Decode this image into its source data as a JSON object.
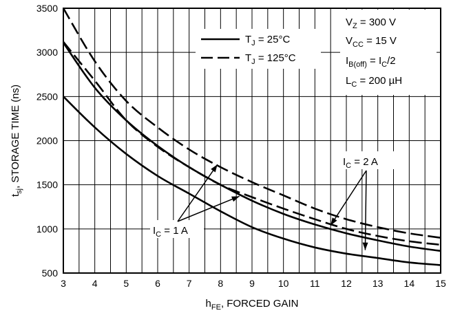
{
  "chart_data": {
    "type": "line",
    "title": "",
    "xlabel": {
      "main": "h",
      "sub": "FE",
      "rest": ", FORCED GAIN"
    },
    "ylabel": {
      "main": "t",
      "sub": "sj",
      "rest": ", STORAGE TIME (ns)"
    },
    "xlim": [
      3,
      15
    ],
    "ylim": [
      500,
      3500
    ],
    "xticks": [
      3,
      4,
      5,
      6,
      7,
      8,
      9,
      10,
      11,
      12,
      13,
      14,
      15
    ],
    "yticks": [
      500,
      1000,
      1500,
      2000,
      2500,
      3000,
      3500
    ],
    "xtick_labels": [
      "3",
      "4",
      "5",
      "6",
      "7",
      "8",
      "9",
      "10",
      "11",
      "12",
      "13",
      "14",
      "15"
    ],
    "ytick_labels": [
      "500",
      "1000",
      "1500",
      "2000",
      "2500",
      "3000",
      "3500"
    ],
    "x_gridlines": [
      3,
      3.5,
      4,
      4.5,
      5,
      5.5,
      6,
      6.5,
      7,
      7.5,
      8,
      8.5,
      9,
      9.5,
      10,
      10.5,
      11,
      11.5,
      12,
      12.5,
      13,
      13.5,
      14,
      14.5,
      15
    ],
    "y_gridlines": [
      500,
      1000,
      1500,
      2000,
      2500,
      3000,
      3500
    ],
    "grid": true,
    "legend": {
      "placement": "top-center",
      "entries": [
        {
          "main": "T",
          "sub": "J",
          "rest": " = 25°C",
          "style": "solid"
        },
        {
          "main": "T",
          "sub": "J",
          "rest": " = 125°C",
          "style": "dashed"
        }
      ]
    },
    "conditions": [
      {
        "main": "V",
        "sub": "Z",
        "rest": " = 300 V"
      },
      {
        "main": "V",
        "sub": "CC",
        "rest": " = 15 V"
      },
      {
        "main": "I",
        "sub": "B(off)",
        "rest": " = I",
        "sub2": "C",
        "rest2": "/2"
      },
      {
        "main": "L",
        "sub": "C",
        "rest": " = 200 µH"
      }
    ],
    "annotations": [
      {
        "main": "I",
        "sub": "C",
        "rest": " = 1 A",
        "anchor_data": [
          6.3,
          950
        ],
        "arrows_to": [
          [
            7.9,
            1730
          ],
          [
            8.6,
            1370
          ]
        ]
      },
      {
        "main": "I",
        "sub": "C",
        "rest": " = 2 A",
        "anchor_data": [
          12.4,
          1690
        ],
        "arrows_to": [
          [
            11.5,
            1040
          ],
          [
            12.6,
            760
          ]
        ]
      }
    ],
    "series": [
      {
        "style": "solid",
        "x": [
          3,
          4,
          5,
          6,
          7,
          8,
          9,
          10,
          11,
          12,
          13,
          14,
          15
        ],
        "y": [
          2500,
          2150,
          1850,
          1600,
          1400,
          1200,
          1020,
          890,
          790,
          720,
          670,
          620,
          590
        ]
      },
      {
        "style": "solid",
        "x": [
          3,
          4,
          5,
          6,
          7,
          8,
          9,
          10,
          11,
          12,
          13,
          14,
          15
        ],
        "y": [
          3110,
          2600,
          2230,
          1940,
          1700,
          1500,
          1320,
          1170,
          1050,
          950,
          870,
          800,
          750
        ]
      },
      {
        "style": "dashed",
        "x": [
          3,
          4,
          5,
          6,
          7,
          8,
          9,
          10,
          11,
          12,
          13,
          14,
          15
        ],
        "y": [
          3120,
          2680,
          2230,
          1930,
          1700,
          1500,
          1360,
          1230,
          1110,
          1000,
          920,
          860,
          820
        ]
      },
      {
        "style": "dashed",
        "x": [
          3,
          4,
          5,
          6,
          7,
          8,
          9,
          10,
          11,
          12,
          13,
          14,
          15
        ],
        "y": [
          3500,
          2900,
          2450,
          2150,
          1900,
          1700,
          1530,
          1380,
          1230,
          1110,
          1020,
          950,
          900
        ]
      }
    ]
  }
}
